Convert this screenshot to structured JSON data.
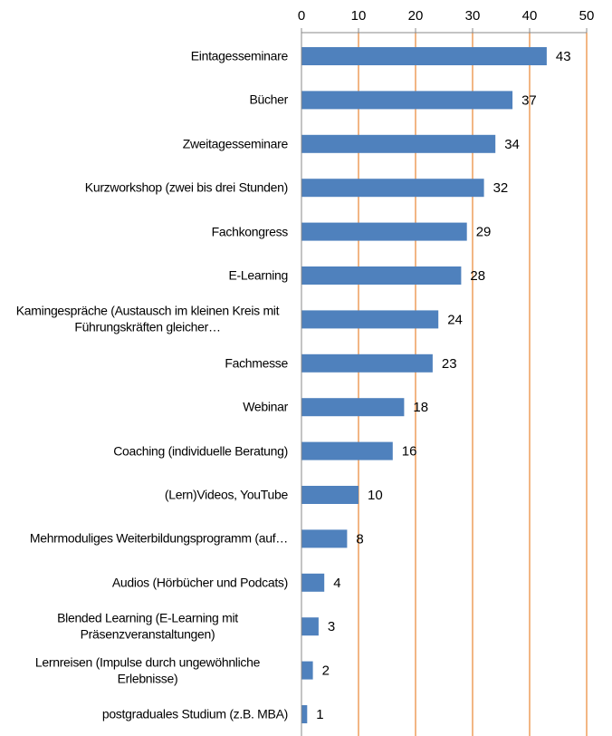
{
  "chart_data": {
    "type": "bar",
    "orientation": "horizontal",
    "categories": [
      "Eintagesseminare",
      "Bücher",
      "Zweitagesseminare",
      "Kurzworkshop (zwei bis drei Stunden)",
      "Fachkongress",
      "E-Learning",
      "Kamingespräche (Austausch im kleinen Kreis mit Führungskräften gleicher…",
      "Fachmesse",
      "Webinar",
      "Coaching (individuelle Beratung)",
      "(Lern)Videos, YouTube",
      "Mehrmoduliges Weiterbildungsprogramm (auf…",
      "Audios (Hörbücher und Podcats)",
      "Blended Learning (E-Learning mit Präsenzveranstaltungen)",
      "Lernreisen (Impulse durch ungewöhnliche Erlebnisse)",
      "postgraduales Studium (z.B. MBA)"
    ],
    "values": [
      43,
      37,
      34,
      32,
      29,
      28,
      24,
      23,
      18,
      16,
      10,
      8,
      4,
      3,
      2,
      1
    ],
    "color": "#4f81bd",
    "grid_color": "#e46c0a",
    "xlim": [
      0,
      50
    ],
    "xticks": [
      0,
      10,
      20,
      30,
      40,
      50
    ],
    "grid": true
  }
}
